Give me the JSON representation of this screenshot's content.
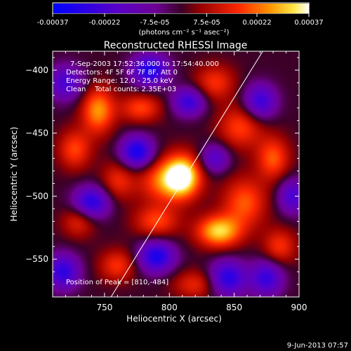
{
  "colorbar": {
    "tick_labels": [
      "-0.00037",
      "-0.00022",
      "-7.5e-05",
      "7.5e-05",
      "0.00022",
      "0.00037"
    ],
    "ticks": [
      -0.00037,
      -0.00022,
      -7.5e-05,
      7.5e-05,
      0.00022,
      0.00037
    ],
    "units_label": "(photons cm⁻² s⁻¹ asec⁻²)",
    "range": [
      -0.00037,
      0.00037
    ]
  },
  "header": {
    "title": "Reconstructed RHESSI Image",
    "time_range": "7-Sep-2003 17:52:36.000 to 17:54:40.000",
    "detectors": "Detectors: 4F 5F 6F 7F 8F, Att 0",
    "energy": "Energy Range: 12.0 - 25.0 keV",
    "clean": "Clean    Total counts: 2.35E+03"
  },
  "footer": {
    "peak": "Position of Peak = [810,-484]",
    "date_stamp": "9-Jun-2013 07:57"
  },
  "chart_data": {
    "type": "heatmap",
    "title": "Reconstructed RHESSI Image",
    "xlabel": "Heliocentric X (arcsec)",
    "ylabel": "Heliocentric Y (arcsec)",
    "xlim": [
      710,
      900
    ],
    "ylim": [
      -580,
      -385
    ],
    "x_ticks": [
      750,
      800,
      850,
      900
    ],
    "x_tick_labels": [
      "750",
      "800",
      "850",
      "900"
    ],
    "y_ticks": [
      -550,
      -500,
      -450,
      -400
    ],
    "y_tick_labels": [
      "−550",
      "−500",
      "−450",
      "−400"
    ],
    "peak": [
      810,
      -484
    ],
    "sources": [
      {
        "x": 810,
        "y": -484,
        "amp": 1.0,
        "sx": 10,
        "sy": 12
      },
      {
        "x": 795,
        "y": -488,
        "amp": 0.55,
        "sx": 14,
        "sy": 12
      },
      {
        "x": 838,
        "y": -528,
        "amp": 0.85,
        "sx": 12,
        "sy": 9
      },
      {
        "x": 858,
        "y": -505,
        "amp": 0.55,
        "sx": 12,
        "sy": 14
      },
      {
        "x": 745,
        "y": -432,
        "amp": 0.7,
        "sx": 9,
        "sy": 13
      },
      {
        "x": 727,
        "y": -463,
        "amp": 0.5,
        "sx": 9,
        "sy": 11
      },
      {
        "x": 778,
        "y": -430,
        "amp": 0.5,
        "sx": 11,
        "sy": 8
      },
      {
        "x": 835,
        "y": -410,
        "amp": 0.45,
        "sx": 11,
        "sy": 10
      },
      {
        "x": 855,
        "y": -445,
        "amp": 0.5,
        "sx": 12,
        "sy": 12
      },
      {
        "x": 880,
        "y": -470,
        "amp": 0.55,
        "sx": 9,
        "sy": 12
      },
      {
        "x": 885,
        "y": -540,
        "amp": 0.45,
        "sx": 9,
        "sy": 10
      },
      {
        "x": 790,
        "y": -520,
        "amp": 0.5,
        "sx": 12,
        "sy": 9
      },
      {
        "x": 760,
        "y": -555,
        "amp": 0.45,
        "sx": 10,
        "sy": 9
      },
      {
        "x": 730,
        "y": -520,
        "amp": 0.4,
        "sx": 9,
        "sy": 9
      },
      {
        "x": 820,
        "y": -570,
        "amp": 0.4,
        "sx": 12,
        "sy": 8
      },
      {
        "x": 760,
        "y": -488,
        "amp": 0.4,
        "sx": 9,
        "sy": 11
      },
      {
        "x": 785,
        "y": -400,
        "amp": -0.85,
        "sx": 10,
        "sy": 9
      },
      {
        "x": 815,
        "y": -425,
        "amp": -0.7,
        "sx": 9,
        "sy": 8
      },
      {
        "x": 775,
        "y": -465,
        "amp": -0.9,
        "sx": 9,
        "sy": 9
      },
      {
        "x": 740,
        "y": -505,
        "amp": -0.8,
        "sx": 10,
        "sy": 9
      },
      {
        "x": 790,
        "y": -548,
        "amp": -0.85,
        "sx": 10,
        "sy": 9
      },
      {
        "x": 845,
        "y": -565,
        "amp": -0.8,
        "sx": 10,
        "sy": 10
      },
      {
        "x": 870,
        "y": -425,
        "amp": -0.7,
        "sx": 9,
        "sy": 10
      },
      {
        "x": 835,
        "y": -470,
        "amp": -0.55,
        "sx": 8,
        "sy": 8
      },
      {
        "x": 875,
        "y": -565,
        "amp": -0.7,
        "sx": 9,
        "sy": 10
      },
      {
        "x": 718,
        "y": -560,
        "amp": -0.75,
        "sx": 9,
        "sy": 10
      },
      {
        "x": 720,
        "y": -410,
        "amp": -0.6,
        "sx": 10,
        "sy": 10
      },
      {
        "x": 895,
        "y": -500,
        "amp": -0.6,
        "sx": 8,
        "sy": 10
      }
    ],
    "limb_line": [
      [
        755,
        -580
      ],
      [
        872,
        -385
      ]
    ],
    "colormap": "red-temperature with blue/purple negatives"
  }
}
